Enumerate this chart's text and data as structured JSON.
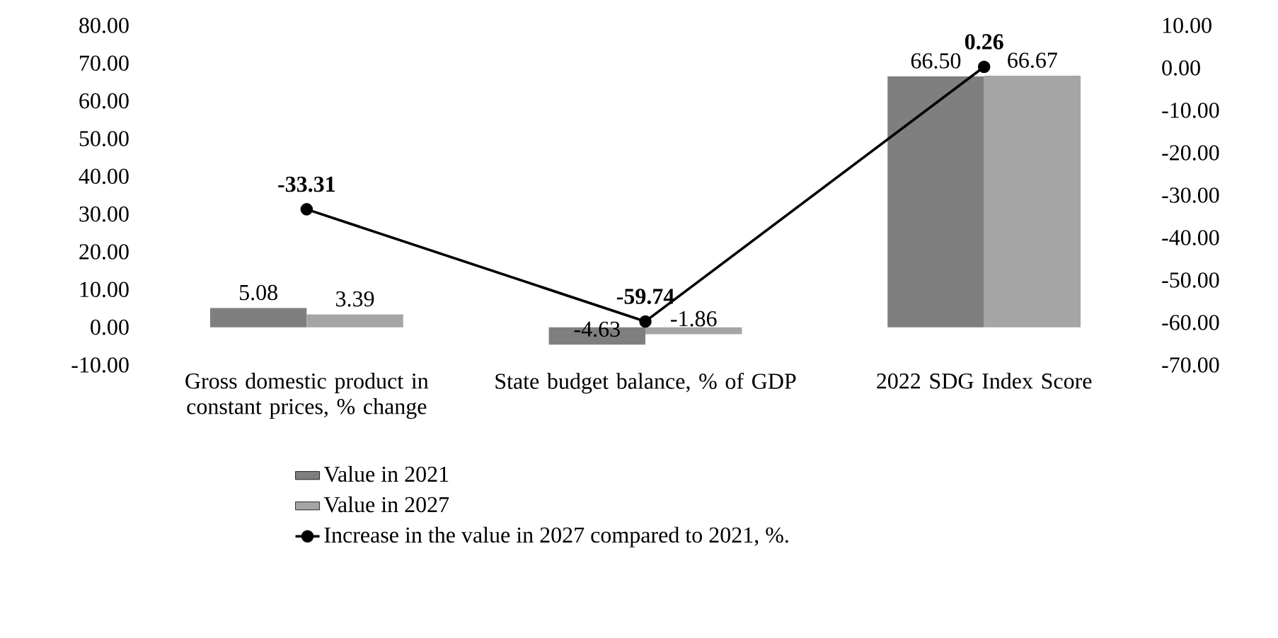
{
  "chart_data": {
    "type": "bar",
    "categories": [
      "Gross domestic product in constant prices, % change",
      "State budget balance, % of GDP",
      "2022 SDG Index Score"
    ],
    "series": [
      {
        "name": "Value in 2021",
        "color": "#7f7f7f",
        "values": [
          5.08,
          -4.63,
          66.5
        ],
        "value_labels": [
          "5.08",
          "-4.63",
          "66.50"
        ]
      },
      {
        "name": "Value in 2027",
        "color": "#a5a5a5",
        "values": [
          3.39,
          -1.86,
          66.67
        ],
        "value_labels": [
          "3.39",
          "-1.86",
          "66.67"
        ]
      },
      {
        "name": "Increase in the value in 2027 compared to 2021, %.",
        "type": "line",
        "axis": "y2",
        "color": "#000000",
        "marker": "circle",
        "values": [
          -33.31,
          -59.74,
          0.26
        ],
        "value_labels": [
          "-33.31",
          "-59.74",
          "0.26"
        ]
      }
    ],
    "ylim": [
      -10,
      80
    ],
    "yticks": [
      {
        "value": -10,
        "label": "-10.00"
      },
      {
        "value": 0,
        "label": "0.00"
      },
      {
        "value": 10,
        "label": "10.00"
      },
      {
        "value": 20,
        "label": "20.00"
      },
      {
        "value": 30,
        "label": "30.00"
      },
      {
        "value": 40,
        "label": "40.00"
      },
      {
        "value": 50,
        "label": "50.00"
      },
      {
        "value": 60,
        "label": "60.00"
      },
      {
        "value": 70,
        "label": "70.00"
      },
      {
        "value": 80,
        "label": "80.00"
      }
    ],
    "y2lim": [
      -70,
      10
    ],
    "y2ticks": [
      {
        "value": -70,
        "label": "-70.00"
      },
      {
        "value": -60,
        "label": "-60.00"
      },
      {
        "value": -50,
        "label": "-50.00"
      },
      {
        "value": -40,
        "label": "-40.00"
      },
      {
        "value": -30,
        "label": "-30.00"
      },
      {
        "value": -20,
        "label": "-20.00"
      },
      {
        "value": -10,
        "label": "-10.00"
      },
      {
        "value": 0,
        "label": "0.00"
      },
      {
        "value": 10,
        "label": "10.00"
      }
    ],
    "legend": "bottom",
    "grid": false
  }
}
